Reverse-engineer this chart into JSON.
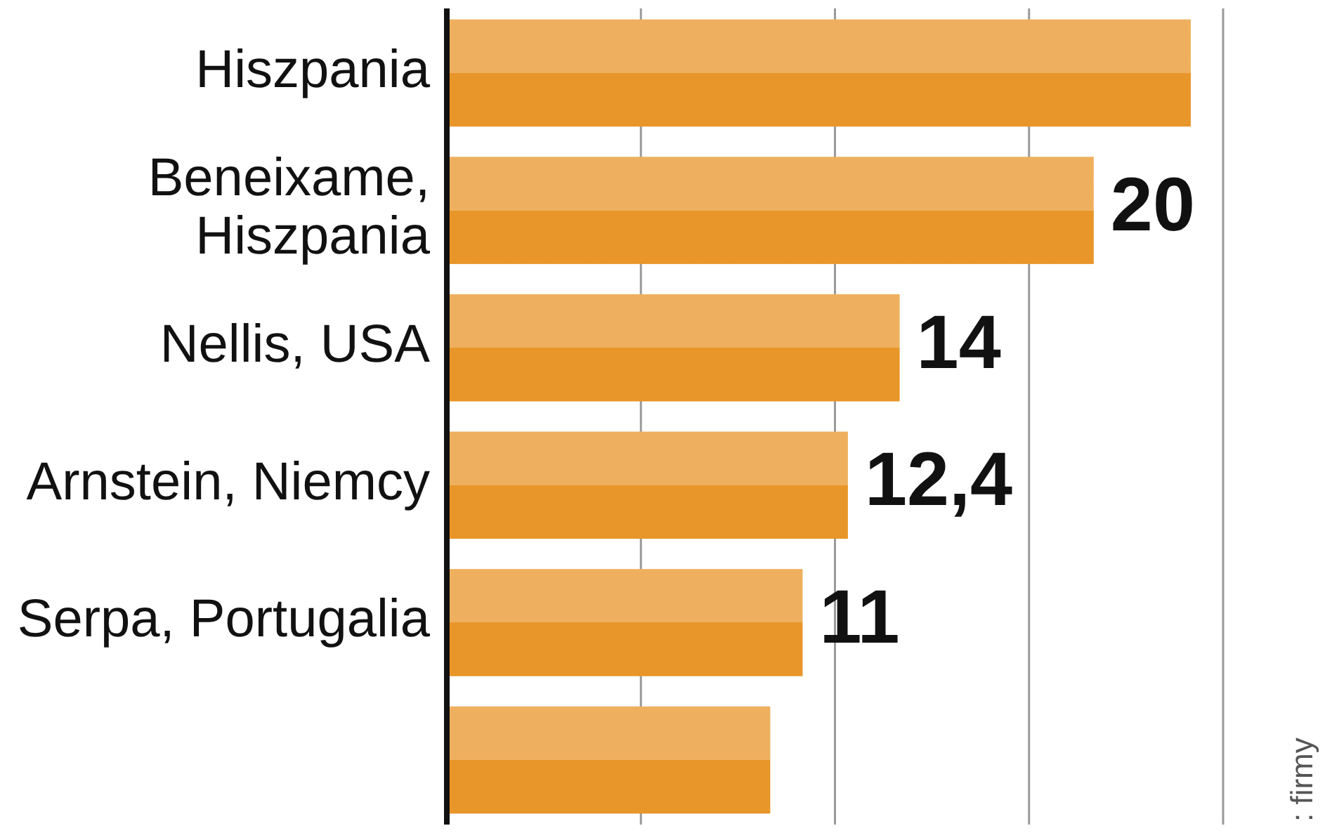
{
  "chart_data": {
    "type": "bar",
    "orientation": "horizontal",
    "categories": [
      "Hiszpania",
      "Beneixame, Hiszpania",
      "Nellis, USA",
      "Arnstein, Niemcy",
      "Serpa, Portugalia",
      null
    ],
    "values": [
      23,
      20,
      14,
      12.4,
      11,
      10
    ],
    "value_labels": [
      null,
      "20",
      "14",
      "12,4",
      "11",
      null
    ],
    "color": "#e8962a",
    "xticks": [
      {
        "value": 6,
        "label": null
      },
      {
        "value": 12,
        "label": null
      },
      {
        "value": 18,
        "label": null
      },
      {
        "value": 24,
        "label": null
      }
    ],
    "grid": "x",
    "annotations": [
      ": firmy"
    ]
  }
}
